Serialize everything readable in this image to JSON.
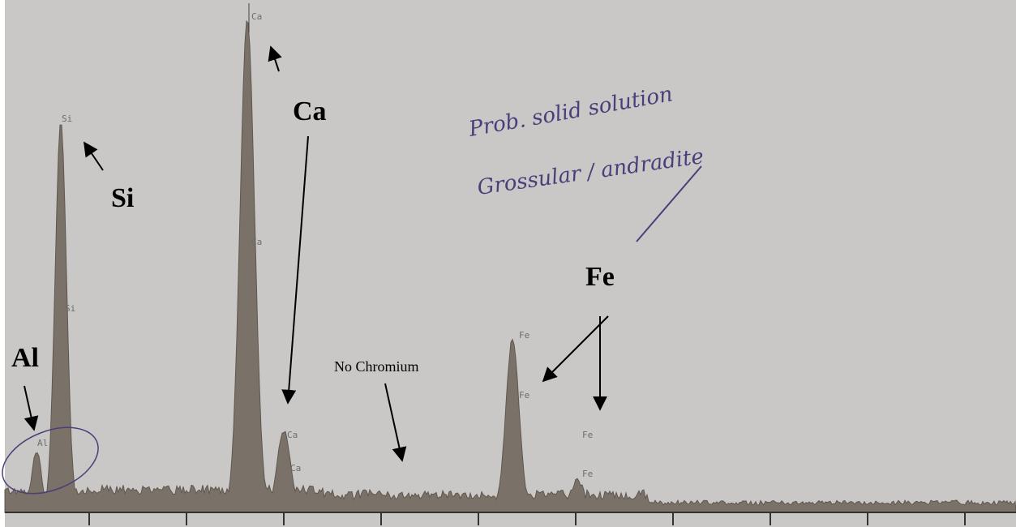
{
  "peak_labels": [
    "Ca",
    "Si",
    "Ca",
    "Si",
    "Fe",
    "Fe",
    "Ca",
    "Ca",
    "Al",
    "Fe",
    "Fe"
  ],
  "annotations": {
    "ca": "Ca",
    "si": "Si",
    "fe": "Fe",
    "al": "Al",
    "no_chromium": "No Chromium"
  },
  "handwriting": [
    "Prob. solid solution",
    "Grossular / andradite"
  ]
}
